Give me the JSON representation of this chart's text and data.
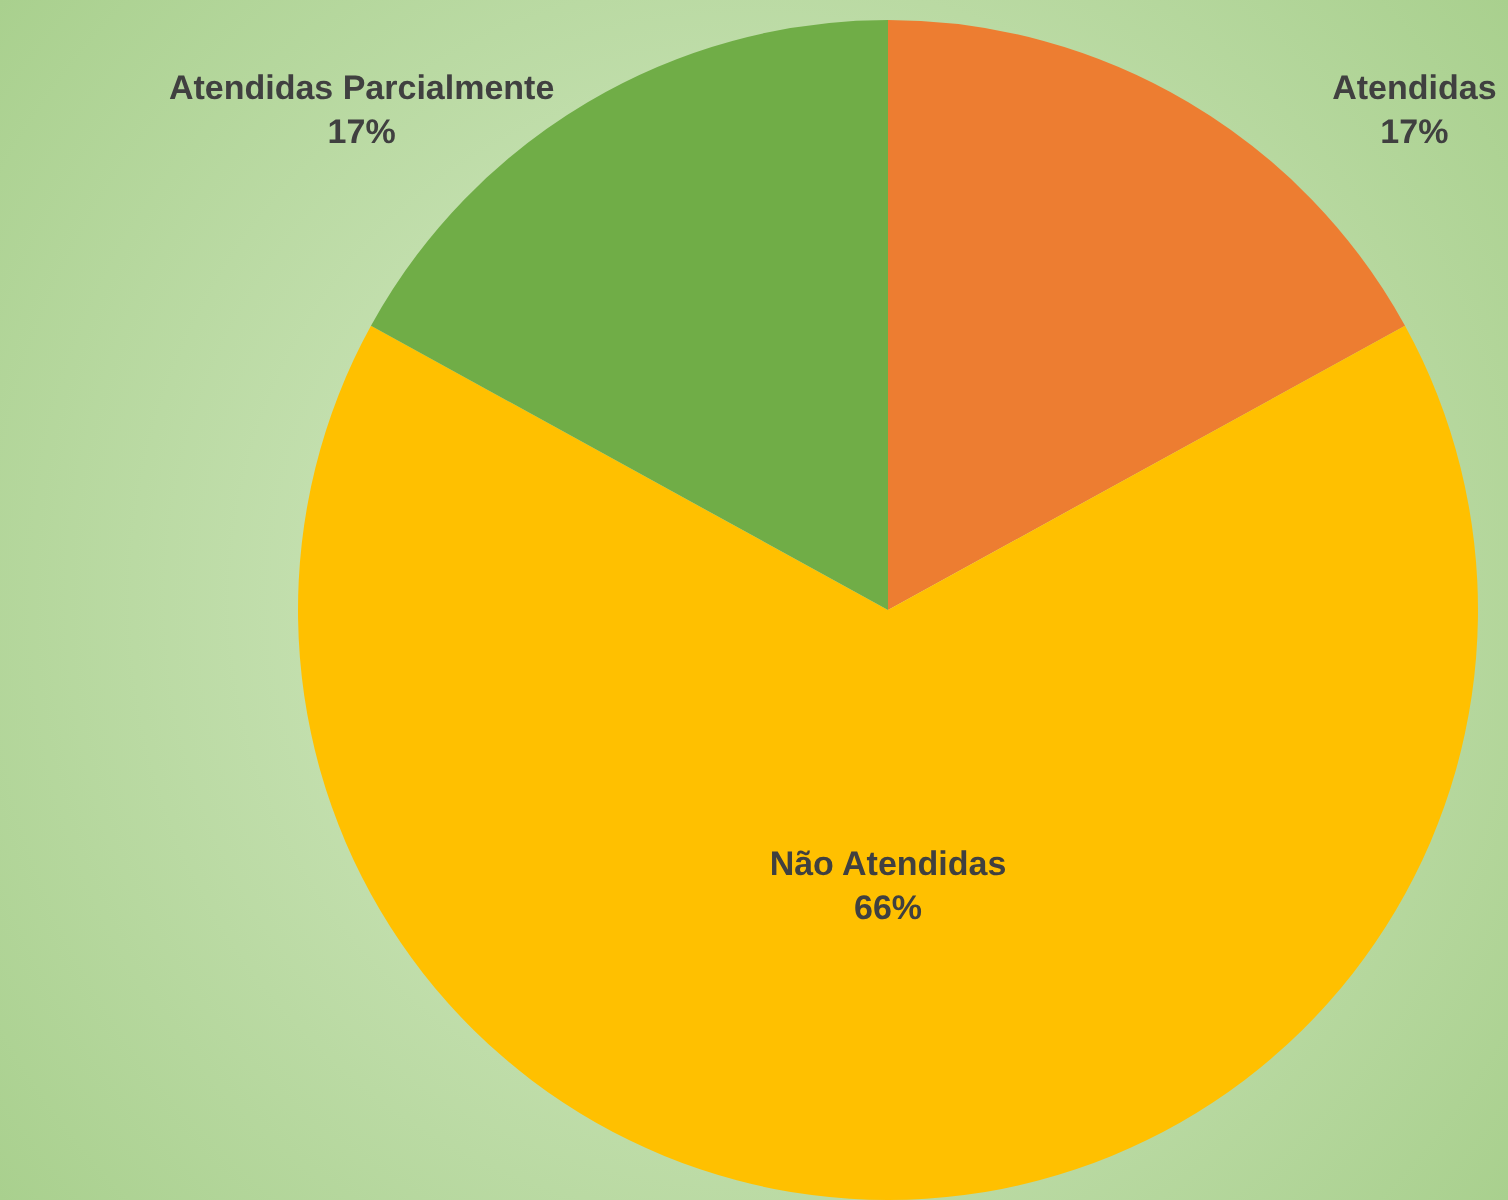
{
  "chart_data": {
    "type": "pie",
    "categories": [
      "Atendidas",
      "Não Atendidas",
      "Atendidas Parcialmente"
    ],
    "values": [
      17,
      66,
      17
    ],
    "colors": [
      "#ed7d31",
      "#ffc000",
      "#70ad47"
    ],
    "value_labels": [
      "17%",
      "66%",
      "17%"
    ],
    "legend": false
  }
}
